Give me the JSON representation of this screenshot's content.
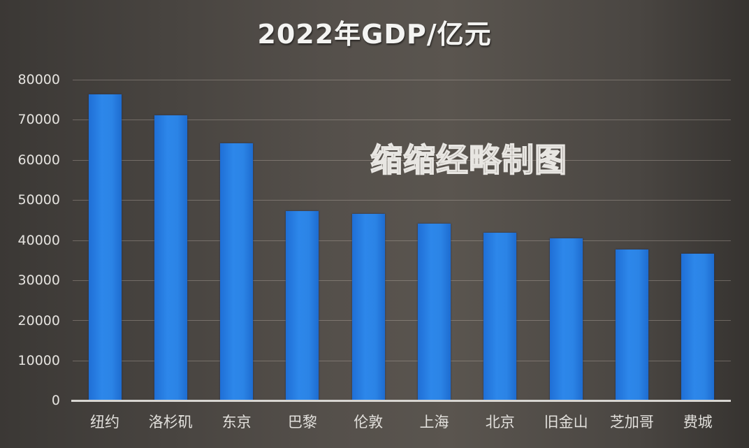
{
  "chart_data": {
    "type": "bar",
    "title": "2022年GDP/亿元",
    "xlabel": "",
    "ylabel": "",
    "categories": [
      "纽约",
      "洛杉矶",
      "东京",
      "巴黎",
      "伦敦",
      "上海",
      "北京",
      "旧金山",
      "芝加哥",
      "费城"
    ],
    "values": [
      76300,
      71100,
      64100,
      47200,
      46500,
      44100,
      41800,
      40400,
      37600,
      36600
    ],
    "ylim": [
      0,
      80000
    ],
    "yticks": [
      0,
      10000,
      20000,
      30000,
      40000,
      50000,
      60000,
      70000,
      80000
    ],
    "grid": true,
    "legend": null,
    "bar_color": "#2b84e6",
    "annotations": [
      "缩缩经略制图"
    ]
  },
  "title": "2022年GDP/亿元",
  "watermark": "缩缩经略制图",
  "yaxis": {
    "ticks": [
      "80000",
      "70000",
      "60000",
      "50000",
      "40000",
      "30000",
      "20000",
      "10000",
      "0"
    ]
  },
  "colors": {
    "background": "#4e4a45",
    "bar": "#2b84e6",
    "text": "#e6e4e0"
  }
}
